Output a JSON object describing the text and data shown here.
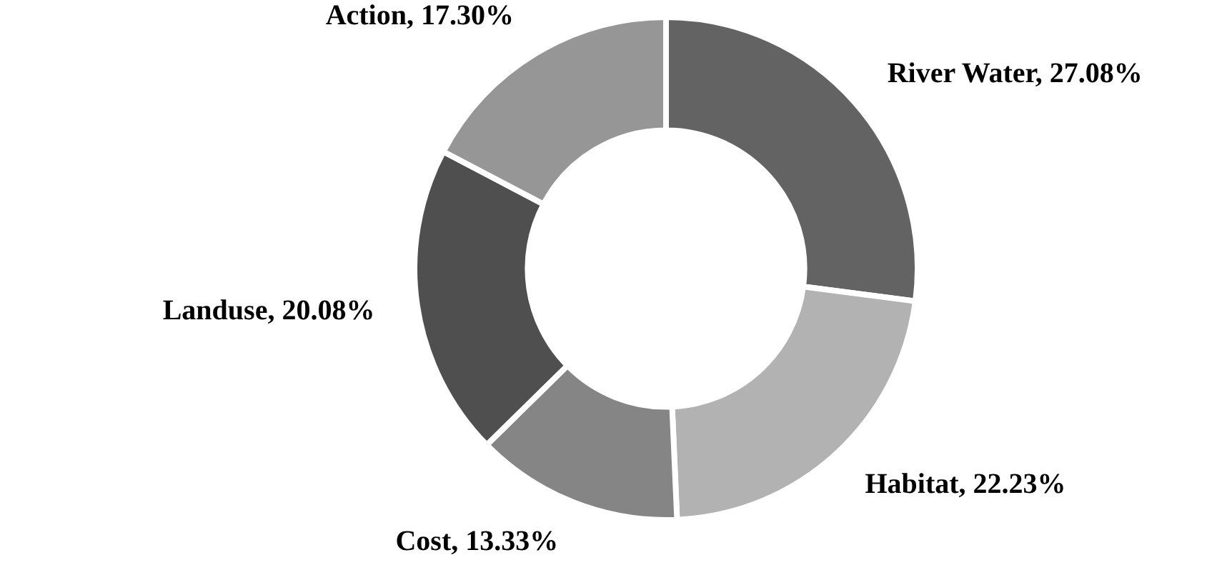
{
  "chart_data": {
    "type": "donut",
    "categories": [
      "River Water",
      "Habitat",
      "Cost",
      "Landuse",
      "Action"
    ],
    "values": [
      27.08,
      22.23,
      13.33,
      20.08,
      17.3
    ],
    "colors": [
      "#636363",
      "#b2b2b2",
      "#858585",
      "#4f4f4f",
      "#969696"
    ],
    "value_labels": [
      "27.08%",
      "22.23%",
      "13.33%",
      "20.08%",
      "17.30%"
    ],
    "legend": false
  }
}
